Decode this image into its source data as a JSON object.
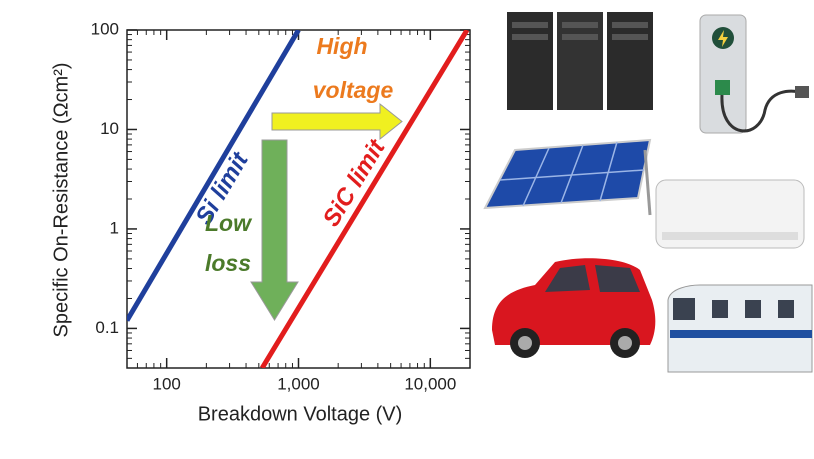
{
  "chart_data": {
    "type": "line",
    "xlabel": "Breakdown Voltage (V)",
    "ylabel": "Specific On-Resistance (Ωcm²)",
    "xscale": "log",
    "yscale": "log",
    "xlim": [
      50,
      20000
    ],
    "ylim": [
      0.04,
      100
    ],
    "xticks": [
      100,
      {
        "value": 1000,
        "label": "1,000"
      },
      {
        "value": 10000,
        "label": "10,000"
      }
    ],
    "yticks": [
      0.1,
      1,
      10,
      100
    ],
    "xminorticks": [
      60,
      70,
      80,
      90,
      200,
      300,
      400,
      500,
      600,
      700,
      800,
      900,
      2000,
      3000,
      4000,
      5000,
      6000,
      7000,
      8000,
      9000
    ],
    "yminorticks": [
      0.05,
      0.06,
      0.07,
      0.08,
      0.09,
      0.2,
      0.3,
      0.4,
      0.5,
      0.6,
      0.7,
      0.8,
      0.9,
      2,
      3,
      4,
      5,
      6,
      7,
      8,
      9,
      20,
      30,
      40,
      50,
      60,
      70,
      80,
      90
    ],
    "series": [
      {
        "name": "Si limit",
        "color": "#1f3f9c",
        "x": [
          50,
          1000
        ],
        "values": [
          0.12,
          100
        ]
      },
      {
        "name": "SiC limit",
        "color": "#e21d1d",
        "x": [
          530,
          19000
        ],
        "values": [
          0.04,
          100
        ]
      }
    ],
    "annotations": [
      {
        "lines": [
          "High",
          "voltage"
        ],
        "color": "#ec7a1e"
      },
      {
        "lines": [
          "Low",
          "loss"
        ],
        "color": "#4b7a2a"
      }
    ]
  }
}
